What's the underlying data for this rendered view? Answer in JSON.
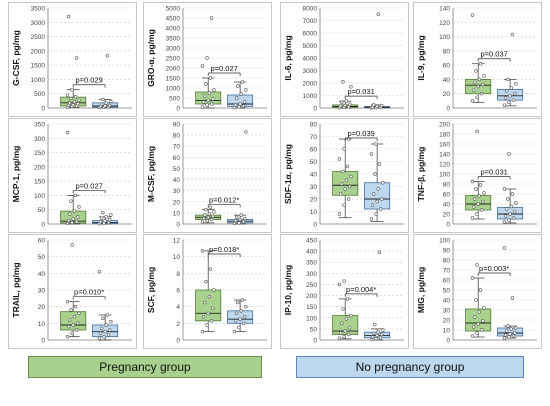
{
  "colors": {
    "pregnancy_fill": "#a9d18e",
    "pregnancy_stroke": "#4f7a2f",
    "no_pregnancy_fill": "#bdd7ee",
    "no_pregnancy_stroke": "#3f6f9f",
    "grid": "#d0d0d0",
    "axis": "#808080"
  },
  "legend": {
    "pregnancy": "Pregnancy group",
    "no_pregnancy": "No pregnancy group"
  },
  "chart_data": [
    {
      "type": "box",
      "ylabel": "G-CSF, pg/mg",
      "yticks": [
        0,
        500,
        1000,
        1500,
        2000,
        2500,
        3000,
        3500
      ],
      "ylim": [
        0,
        3500
      ],
      "pvalue": "p=0.029",
      "pregnancy": {
        "min": 20,
        "q1": 70,
        "median": 180,
        "q3": 380,
        "max": 640,
        "points": [
          30,
          50,
          70,
          90,
          110,
          150,
          180,
          220,
          270,
          330,
          390,
          450,
          640,
          1750,
          3200
        ]
      },
      "no_pregnancy": {
        "min": 10,
        "q1": 30,
        "median": 70,
        "q3": 180,
        "max": 300,
        "points": [
          15,
          25,
          40,
          55,
          70,
          90,
          130,
          170,
          230,
          300,
          1830
        ]
      }
    },
    {
      "type": "box",
      "ylabel": "GRO-α, pg/mg",
      "yticks": [
        0,
        500,
        1000,
        1500,
        2000,
        2500,
        3000,
        3500,
        4000,
        4500,
        5000
      ],
      "ylim": [
        0,
        5000
      ],
      "pvalue": "p=0.027",
      "pregnancy": {
        "min": 0,
        "q1": 200,
        "median": 380,
        "q3": 800,
        "max": 1500,
        "points": [
          50,
          150,
          200,
          300,
          380,
          450,
          600,
          750,
          900,
          1200,
          1500,
          2100,
          2500,
          4500
        ]
      },
      "no_pregnancy": {
        "min": 0,
        "q1": 80,
        "median": 200,
        "q3": 650,
        "max": 1300,
        "points": [
          20,
          60,
          100,
          150,
          200,
          300,
          500,
          700,
          900,
          1100,
          1300
        ]
      }
    },
    {
      "type": "box",
      "ylabel": "IL-6, pg/mg",
      "yticks": [
        0,
        1000,
        2000,
        3000,
        4000,
        5000,
        6000,
        7000,
        8000
      ],
      "ylim": [
        0,
        8000
      ],
      "pvalue": "p=0.031",
      "pregnancy": {
        "min": 0,
        "q1": 40,
        "median": 120,
        "q3": 250,
        "max": 550,
        "points": [
          20,
          60,
          100,
          150,
          200,
          300,
          450,
          550,
          1700,
          2100
        ]
      },
      "no_pregnancy": {
        "min": 0,
        "q1": 20,
        "median": 60,
        "q3": 120,
        "max": 250,
        "points": [
          10,
          30,
          50,
          80,
          120,
          200,
          250,
          7500
        ]
      }
    },
    {
      "type": "box",
      "ylabel": "IL-9, pg/mg",
      "yticks": [
        0,
        20,
        40,
        60,
        80,
        100,
        120,
        140
      ],
      "ylim": [
        0,
        140
      ],
      "pvalue": "p=0.037",
      "pregnancy": {
        "min": 8,
        "q1": 20,
        "median": 32,
        "q3": 40,
        "max": 62,
        "points": [
          10,
          15,
          20,
          25,
          30,
          33,
          36,
          40,
          45,
          52,
          62,
          130
        ]
      },
      "no_pregnancy": {
        "min": 3,
        "q1": 11,
        "median": 17,
        "q3": 26,
        "max": 40,
        "points": [
          4,
          8,
          11,
          14,
          17,
          20,
          24,
          28,
          34,
          40,
          103
        ]
      }
    },
    {
      "type": "box",
      "ylabel": "MCP-1, pg/mg",
      "yticks": [
        0,
        50,
        100,
        150,
        200,
        250,
        300,
        350
      ],
      "ylim": [
        0,
        350
      ],
      "pvalue": "p=0.027",
      "pregnancy": {
        "min": 0,
        "q1": 3,
        "median": 10,
        "q3": 45,
        "max": 100,
        "points": [
          2,
          5,
          8,
          12,
          18,
          25,
          35,
          45,
          60,
          80,
          100,
          320
        ]
      },
      "no_pregnancy": {
        "min": 0,
        "q1": 2,
        "median": 5,
        "q3": 12,
        "max": 25,
        "points": [
          1,
          3,
          5,
          8,
          11,
          15,
          20,
          25,
          32,
          40
        ]
      }
    },
    {
      "type": "box",
      "ylabel": "M-CSF, pg/mg",
      "yticks": [
        0,
        10,
        20,
        30,
        40,
        50,
        60,
        70,
        80,
        90
      ],
      "ylim": [
        0,
        90
      ],
      "pvalue": "p=0.012*",
      "pregnancy": {
        "min": 1,
        "q1": 4,
        "median": 6,
        "q3": 8,
        "max": 13,
        "points": [
          2,
          3,
          4,
          5,
          6,
          7,
          8,
          9,
          11,
          13,
          15
        ]
      },
      "no_pregnancy": {
        "min": 0,
        "q1": 1,
        "median": 2.5,
        "q3": 4,
        "max": 8,
        "points": [
          0.5,
          1,
          2,
          3,
          4,
          5,
          6,
          8,
          83
        ]
      }
    },
    {
      "type": "box",
      "ylabel": "SDF-1α, pg/mg",
      "yticks": [
        0,
        10,
        20,
        30,
        40,
        50,
        60,
        70,
        80
      ],
      "ylim": [
        0,
        80
      ],
      "pvalue": "p=0.039",
      "pregnancy": {
        "min": 5,
        "q1": 23,
        "median": 31,
        "q3": 42,
        "max": 68,
        "points": [
          8,
          15,
          20,
          24,
          28,
          30,
          32,
          35,
          38,
          42,
          46,
          52,
          60,
          68
        ]
      },
      "no_pregnancy": {
        "min": 2,
        "q1": 12,
        "median": 20,
        "q3": 33,
        "max": 64,
        "points": [
          4,
          8,
          12,
          15,
          18,
          20,
          24,
          28,
          33,
          40,
          48,
          56,
          64
        ]
      }
    },
    {
      "type": "box",
      "ylabel": "TNF-β, pg/mg",
      "yticks": [
        0,
        20,
        40,
        60,
        80,
        100,
        120,
        140,
        160,
        180,
        200
      ],
      "ylim": [
        0,
        200
      ],
      "pvalue": "p=0.031",
      "pregnancy": {
        "min": 10,
        "q1": 28,
        "median": 40,
        "q3": 57,
        "max": 85,
        "points": [
          12,
          20,
          28,
          34,
          40,
          45,
          50,
          56,
          62,
          70,
          78,
          85,
          185
        ]
      },
      "no_pregnancy": {
        "min": 2,
        "q1": 10,
        "median": 20,
        "q3": 33,
        "max": 70,
        "points": [
          4,
          8,
          12,
          16,
          20,
          25,
          30,
          35,
          42,
          50,
          60,
          70,
          140
        ]
      }
    },
    {
      "type": "box",
      "ylabel": "TRAIL, pg/mg",
      "yticks": [
        0,
        10,
        20,
        30,
        40,
        50,
        60
      ],
      "ylim": [
        0,
        60
      ],
      "pvalue": "p=0.010*",
      "pregnancy": {
        "min": 2,
        "q1": 6,
        "median": 9,
        "q3": 17,
        "max": 23,
        "points": [
          2,
          4,
          6,
          8,
          9,
          10,
          12,
          14,
          16,
          18,
          20,
          23,
          57
        ]
      },
      "no_pregnancy": {
        "min": 0,
        "q1": 2,
        "median": 5,
        "q3": 9,
        "max": 15,
        "points": [
          1,
          2,
          3,
          4,
          5,
          6,
          7,
          9,
          11,
          13,
          15,
          41
        ]
      }
    },
    {
      "type": "box",
      "ylabel": "SCF, pg/mg",
      "yticks": [
        0,
        2,
        4,
        6,
        8,
        10,
        12
      ],
      "ylim": [
        0,
        12
      ],
      "pvalue": "p=0.018*",
      "pregnancy": {
        "min": 1,
        "q1": 2.3,
        "median": 3.2,
        "q3": 6,
        "max": 10.7,
        "points": [
          1,
          1.8,
          2.3,
          2.8,
          3.2,
          3.8,
          4.5,
          5.2,
          6,
          7,
          8.5,
          10.7
        ]
      },
      "no_pregnancy": {
        "min": 1,
        "q1": 2,
        "median": 2.5,
        "q3": 3.5,
        "max": 4.8,
        "points": [
          1,
          1.5,
          2,
          2.3,
          2.5,
          2.8,
          3.2,
          3.5,
          4,
          4.5,
          4.8
        ]
      }
    },
    {
      "type": "box",
      "ylabel": "IP-10, pg/mg",
      "yticks": [
        0,
        50,
        100,
        150,
        200,
        250,
        300,
        350,
        400,
        450
      ],
      "ylim": [
        0,
        450
      ],
      "pvalue": "p=0.004*",
      "pregnancy": {
        "min": 5,
        "q1": 25,
        "median": 40,
        "q3": 110,
        "max": 185,
        "points": [
          8,
          15,
          25,
          32,
          40,
          55,
          75,
          95,
          110,
          140,
          185,
          250,
          265
        ]
      },
      "no_pregnancy": {
        "min": 0,
        "q1": 10,
        "median": 20,
        "q3": 35,
        "max": 50,
        "points": [
          2,
          6,
          10,
          14,
          20,
          25,
          30,
          35,
          45,
          70,
          395
        ]
      }
    },
    {
      "type": "box",
      "ylabel": "MIG, pg/mg",
      "yticks": [
        0,
        10,
        20,
        30,
        40,
        50,
        60,
        70,
        80,
        90,
        100
      ],
      "ylim": [
        0,
        100
      ],
      "pvalue": "p=0.003*",
      "pregnancy": {
        "min": 3,
        "q1": 9,
        "median": 17,
        "q3": 31,
        "max": 62,
        "points": [
          4,
          7,
          10,
          13,
          16,
          19,
          23,
          28,
          32,
          40,
          50,
          62,
          75
        ]
      },
      "no_pregnancy": {
        "min": 2,
        "q1": 4,
        "median": 7,
        "q3": 12,
        "max": 14,
        "points": [
          2,
          3,
          4,
          5,
          6,
          7,
          9,
          11,
          12,
          14,
          42,
          92
        ]
      }
    }
  ]
}
